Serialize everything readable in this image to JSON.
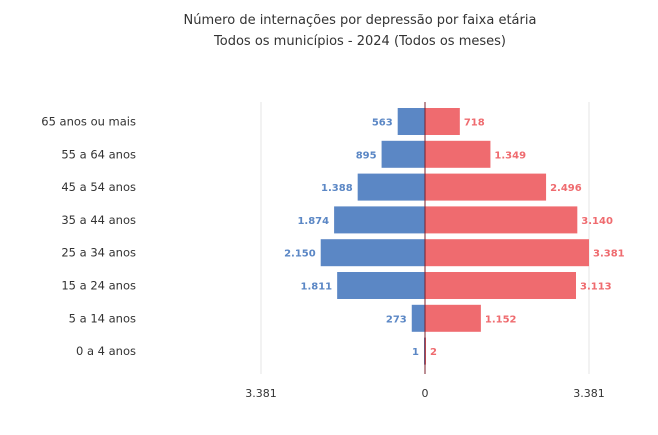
{
  "colors": {
    "left": "#5b87c5",
    "right": "#ef6b6f",
    "axis": "#7a1f2b",
    "grid": "#e6e6e6",
    "text": "#333333"
  },
  "chart_data": {
    "type": "bar",
    "orientation": "horizontal",
    "layout": "diverging",
    "title": "Número de internações por depressão por faixa etária",
    "subtitle": "Todos os municípios - 2024 (Todos os meses)",
    "categories": [
      "65 anos ou mais",
      "55 a 64 anos",
      "45 a 54 anos",
      "35 a 44 anos",
      "25 a 34 anos",
      "15 a 24 anos",
      "5 a 14 anos",
      "0 a 4 anos"
    ],
    "series": [
      {
        "side": "left",
        "color": "#5b87c5",
        "values": [
          563,
          895,
          1388,
          1874,
          2150,
          1811,
          273,
          1
        ],
        "labels": [
          "563",
          "895",
          "1.388",
          "1.874",
          "2.150",
          "1.811",
          "273",
          "1"
        ]
      },
      {
        "side": "right",
        "color": "#ef6b6f",
        "values": [
          718,
          1349,
          2496,
          3140,
          3381,
          3113,
          1152,
          2
        ],
        "labels": [
          "718",
          "1.349",
          "2.496",
          "3.140",
          "3.381",
          "3.113",
          "1.152",
          "2"
        ]
      }
    ],
    "xlim": [
      -3381,
      3381
    ],
    "x_ticks": [
      {
        "value": -3381,
        "label": "3.381"
      },
      {
        "value": 0,
        "label": "0"
      },
      {
        "value": 3381,
        "label": "3.381"
      }
    ],
    "grid": true,
    "legend": "none"
  }
}
